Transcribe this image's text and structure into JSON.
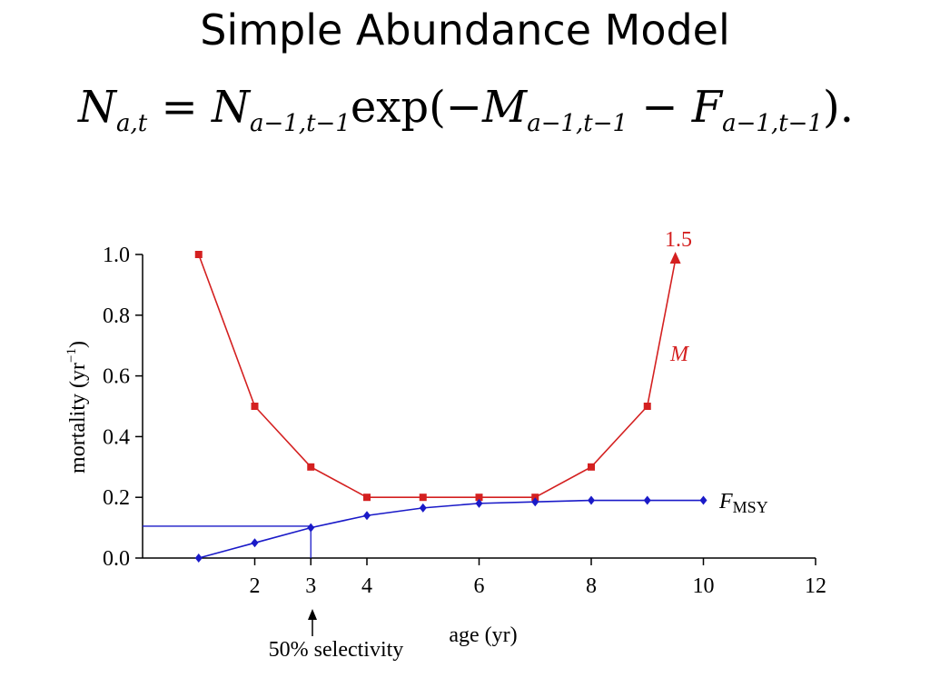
{
  "slide": {
    "title": "Simple Abundance Model",
    "equation": {
      "lhs": "N",
      "lhs_sub": "a,t",
      "equals": "=",
      "term1": "N",
      "term1_sub": "a−1,t−1",
      "func": "exp(−",
      "m": "M",
      "m_sub": "a−1,t−1",
      "minus": " − ",
      "f": "F",
      "f_sub": "a−1,t−1",
      "close": ")."
    }
  },
  "chart_data": {
    "type": "line",
    "xlabel": "age (yr)",
    "ylabel": "mortality (yr",
    "ylabel_sup": "−1",
    "ylabel_close": ")",
    "xlim": [
      0,
      12
    ],
    "ylim": [
      0,
      1.0
    ],
    "x_ticks": [
      2,
      3,
      4,
      6,
      8,
      10,
      12
    ],
    "y_ticks": [
      "0.0",
      "0.2",
      "0.4",
      "0.6",
      "0.8",
      "1.0"
    ],
    "grid": false,
    "series": [
      {
        "name": "M",
        "color": "#d42020",
        "marker": "square",
        "x": [
          1,
          2,
          3,
          4,
          5,
          6,
          7,
          8,
          9
        ],
        "y": [
          1.0,
          0.5,
          0.3,
          0.2,
          0.2,
          0.2,
          0.2,
          0.3,
          0.5
        ],
        "end_arrow": {
          "x": 9.5,
          "y": 1.0,
          "label": "1.5"
        }
      },
      {
        "name": "F",
        "name_sub": "MSY",
        "color": "#1a1ac8",
        "marker": "diamond",
        "x": [
          1,
          2,
          3,
          4,
          5,
          6,
          7,
          8,
          9,
          10
        ],
        "y": [
          0.0,
          0.05,
          0.1,
          0.14,
          0.165,
          0.18,
          0.185,
          0.19,
          0.19,
          0.19
        ]
      }
    ],
    "reference": {
      "x": 3,
      "y": 0.105,
      "color": "#1a1ac8"
    },
    "annotation": {
      "text": "50% selectivity",
      "x": 3
    }
  }
}
